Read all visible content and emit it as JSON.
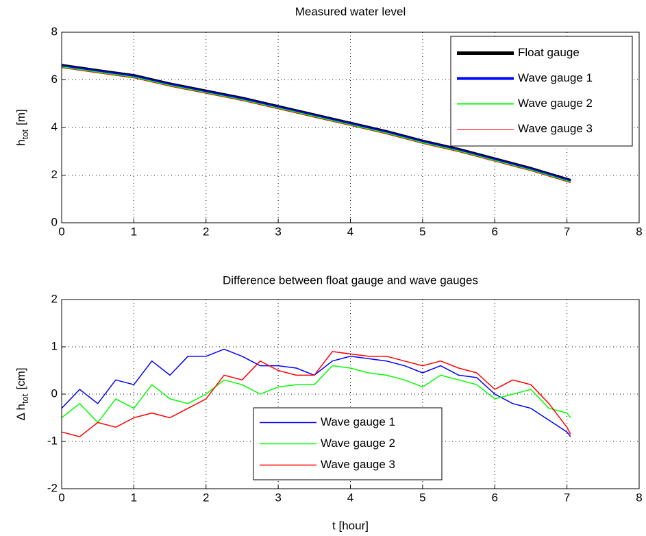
{
  "chart_data": [
    {
      "type": "line",
      "title": "Measured water level",
      "ylabel": {
        "base": "h",
        "sub": "tot",
        "unit": "[m]"
      },
      "xlim": [
        0,
        8
      ],
      "ylim": [
        0,
        8
      ],
      "xticks": [
        0,
        1,
        2,
        3,
        4,
        5,
        6,
        7,
        8
      ],
      "yticks": [
        0,
        2,
        4,
        6,
        8
      ],
      "grid": true,
      "legend": "northeast",
      "x": [
        0,
        0.5,
        1,
        1.5,
        2,
        2.5,
        3,
        3.5,
        4,
        4.5,
        5,
        5.5,
        6,
        6.5,
        7.05
      ],
      "series": [
        {
          "name": "Float gauge",
          "color": "#000000",
          "width": 5,
          "values": [
            6.6,
            6.38,
            6.17,
            5.82,
            5.52,
            5.22,
            4.87,
            4.52,
            4.17,
            3.82,
            3.42,
            3.07,
            2.67,
            2.27,
            1.77
          ]
        },
        {
          "name": "Wave gauge 1",
          "color": "#0000ff",
          "width": 4,
          "values": [
            6.57,
            6.35,
            6.14,
            5.79,
            5.49,
            5.19,
            4.84,
            4.49,
            4.14,
            3.79,
            3.39,
            3.04,
            2.64,
            2.24,
            1.74
          ]
        },
        {
          "name": "Wave gauge 2",
          "color": "#00ff00",
          "width": 2,
          "values": [
            6.54,
            6.32,
            6.11,
            5.76,
            5.46,
            5.16,
            4.81,
            4.46,
            4.11,
            3.76,
            3.36,
            3.01,
            2.61,
            2.21,
            1.71
          ]
        },
        {
          "name": "Wave gauge 3",
          "color": "#ff0000",
          "width": 1,
          "values": [
            6.51,
            6.29,
            6.08,
            5.73,
            5.43,
            5.13,
            4.78,
            4.43,
            4.08,
            3.73,
            3.33,
            2.98,
            2.58,
            2.18,
            1.68
          ]
        }
      ]
    },
    {
      "type": "line",
      "title": "Difference between float gauge and wave gauges",
      "ylabel": {
        "base": "Δ h",
        "sub": "tot",
        "unit": "[cm]"
      },
      "xlabel": "t [hour]",
      "xlim": [
        0,
        8
      ],
      "ylim": [
        -2,
        2
      ],
      "xticks": [
        0,
        1,
        2,
        3,
        4,
        5,
        6,
        7,
        8
      ],
      "yticks": [
        -2,
        -1,
        0,
        1,
        2
      ],
      "grid": true,
      "legend": "south",
      "x": [
        0,
        0.25,
        0.5,
        0.75,
        1,
        1.25,
        1.5,
        1.75,
        2,
        2.25,
        2.5,
        2.75,
        3,
        3.25,
        3.5,
        3.75,
        4,
        4.25,
        4.5,
        4.75,
        5,
        5.25,
        5.5,
        5.75,
        6,
        6.25,
        6.5,
        6.75,
        7,
        7.05
      ],
      "series": [
        {
          "name": "Wave gauge 1",
          "color": "#0000ff",
          "width": 1.5,
          "values": [
            -0.3,
            0.1,
            -0.2,
            0.3,
            0.2,
            0.7,
            0.4,
            0.8,
            0.8,
            0.95,
            0.8,
            0.6,
            0.6,
            0.55,
            0.4,
            0.7,
            0.8,
            0.75,
            0.7,
            0.6,
            0.45,
            0.6,
            0.4,
            0.35,
            0.0,
            -0.2,
            -0.3,
            -0.55,
            -0.8,
            -0.9
          ]
        },
        {
          "name": "Wave gauge 2",
          "color": "#00ff00",
          "width": 1.5,
          "values": [
            -0.5,
            -0.2,
            -0.6,
            -0.1,
            -0.3,
            0.2,
            -0.1,
            -0.2,
            0.0,
            0.3,
            0.2,
            0.0,
            0.15,
            0.2,
            0.2,
            0.6,
            0.55,
            0.45,
            0.4,
            0.3,
            0.15,
            0.4,
            0.3,
            0.2,
            -0.1,
            0.0,
            0.1,
            -0.3,
            -0.4,
            -0.5
          ]
        },
        {
          "name": "Wave gauge 3",
          "color": "#ff0000",
          "width": 1.5,
          "values": [
            -0.8,
            -0.9,
            -0.6,
            -0.7,
            -0.5,
            -0.4,
            -0.5,
            -0.3,
            -0.1,
            0.4,
            0.3,
            0.7,
            0.5,
            0.4,
            0.4,
            0.9,
            0.85,
            0.8,
            0.8,
            0.7,
            0.6,
            0.7,
            0.55,
            0.45,
            0.1,
            0.3,
            0.2,
            -0.2,
            -0.7,
            -0.85
          ]
        }
      ]
    }
  ]
}
